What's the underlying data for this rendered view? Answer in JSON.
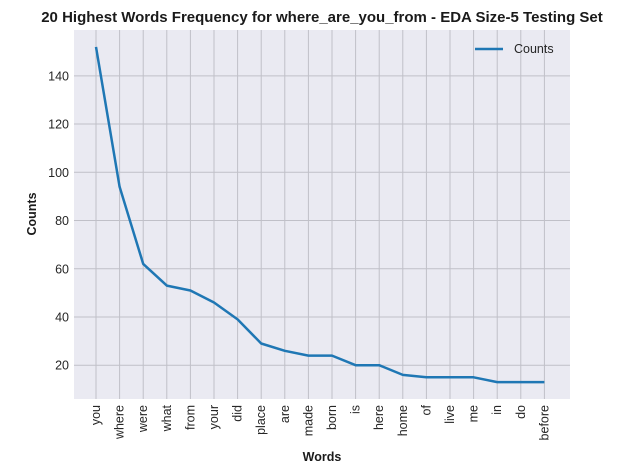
{
  "chart_data": {
    "type": "line",
    "title": "20 Highest Words Frequency for where_are_you_from - EDA Size-5 Testing Set",
    "xlabel": "Words",
    "ylabel": "Counts",
    "categories": [
      "you",
      "where",
      "were",
      "what",
      "from",
      "your",
      "did",
      "place",
      "are",
      "made",
      "born",
      "is",
      "here",
      "home",
      "of",
      "live",
      "me",
      "in",
      "do",
      "before"
    ],
    "series": [
      {
        "name": "Counts",
        "values": [
          152,
          94,
          62,
          53,
          51,
          46,
          39,
          29,
          26,
          24,
          24,
          20,
          20,
          16,
          15,
          15,
          15,
          13,
          13,
          13
        ]
      }
    ],
    "yticks": [
      20,
      40,
      60,
      80,
      100,
      120,
      140
    ],
    "ylim": [
      6,
      159
    ],
    "grid": true,
    "legend_position": "top-right",
    "colors": {
      "line": "#1f77b4",
      "background": "#eaeaf2",
      "grid": "#c0c0c8"
    }
  }
}
